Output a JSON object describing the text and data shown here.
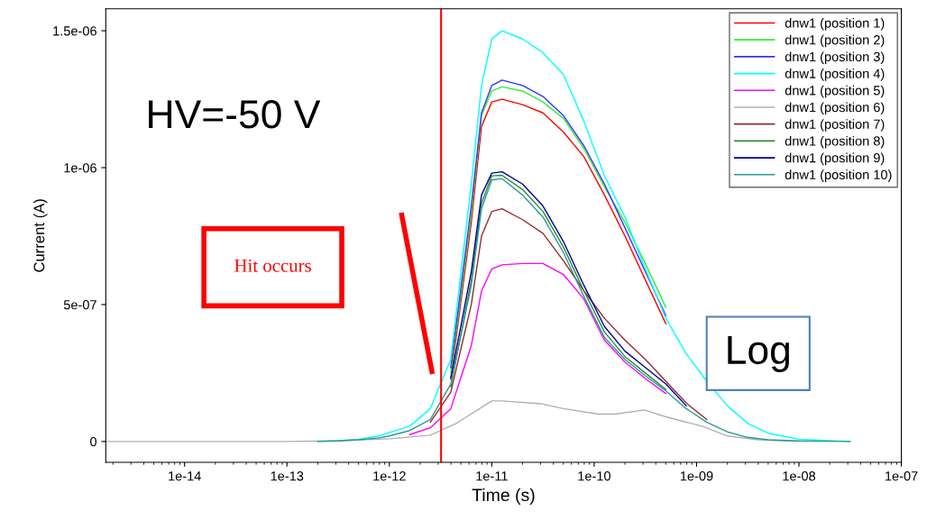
{
  "chart_data": {
    "type": "line",
    "xlabel": "Time (s)",
    "ylabel": "Current (A)",
    "log": "x",
    "xlim": [
      1.7e-15,
      1e-07
    ],
    "xticks": [
      {
        "value": 1e-14,
        "label": "1e-14"
      },
      {
        "value": 1e-13,
        "label": "1e-13"
      },
      {
        "value": 1e-12,
        "label": "1e-12"
      },
      {
        "value": 1e-11,
        "label": "1e-11"
      },
      {
        "value": 1e-10,
        "label": "1e-10"
      },
      {
        "value": 1e-09,
        "label": "1e-09"
      },
      {
        "value": 1e-08,
        "label": "1e-08"
      },
      {
        "value": 1e-07,
        "label": "1e-07"
      }
    ],
    "ylim": [
      -7.6e-08,
      1.58e-06
    ],
    "yticks": [
      0,
      {
        "value": 5e-07,
        "label": "5e-07"
      },
      {
        "value": 1e-06,
        "label": "1e-06"
      },
      {
        "value": 1.5e-06,
        "label": "1.5e-06"
      }
    ],
    "x": [
      2e-13,
      3.16e-13,
      5.01e-13,
      7.94e-13,
      1e-12,
      1.58e-12,
      2.51e-12,
      3.98e-12,
      6.31e-12,
      7.94e-12,
      1e-11,
      1.26e-11,
      2e-11,
      3.16e-11,
      5.01e-11,
      7.94e-11,
      1.26e-10,
      2e-10,
      3.16e-10,
      5.01e-10,
      7.94e-10,
      1.26e-09,
      2e-09,
      3.16e-09,
      5.01e-09,
      1e-08,
      3.16e-08
    ],
    "series": [
      {
        "name": "dnw1 (position 1)",
        "color": "#ff0000",
        "values": [
          null,
          null,
          null,
          null,
          null,
          null,
          null,
          2.3e-07,
          8e-07,
          1.15e-06,
          1.24e-06,
          1.25e-06,
          1.23e-06,
          1.2e-06,
          1.13e-06,
          1.04e-06,
          9e-07,
          7.5e-07,
          5.9e-07,
          4.3e-07,
          null,
          null,
          null,
          null,
          null,
          null,
          null
        ]
      },
      {
        "name": "dnw1 (position 2)",
        "color": "#33ee33",
        "values": [
          null,
          null,
          null,
          null,
          null,
          null,
          null,
          2.5e-07,
          8.3e-07,
          1.19e-06,
          1.28e-06,
          1.295e-06,
          1.28e-06,
          1.24e-06,
          1.18e-06,
          1.07e-06,
          9.3e-07,
          8e-07,
          6.5e-07,
          4.9e-07,
          null,
          null,
          null,
          null,
          null,
          null,
          null
        ]
      },
      {
        "name": "dnw1 (position 3)",
        "color": "#3333ff",
        "values": [
          null,
          null,
          null,
          null,
          null,
          null,
          null,
          2.7e-07,
          8.6e-07,
          1.2e-06,
          1.3e-06,
          1.32e-06,
          1.3e-06,
          1.26e-06,
          1.19e-06,
          1.08e-06,
          9.4e-07,
          7.8e-07,
          6.2e-07,
          4.6e-07,
          null,
          null,
          null,
          null,
          null,
          null,
          null
        ]
      },
      {
        "name": "dnw1 (position 4)",
        "color": "#00ffff",
        "values": [
          0,
          3e-09,
          8e-09,
          2e-08,
          3.3e-08,
          5.6e-08,
          1.2e-07,
          3e-07,
          9.4e-07,
          1.3e-06,
          1.47e-06,
          1.5e-06,
          1.47e-06,
          1.42e-06,
          1.34e-06,
          1.17e-06,
          9.7e-07,
          8.2e-07,
          6.3e-07,
          4.5e-07,
          3.2e-07,
          2.2e-07,
          1.3e-07,
          6.6e-08,
          3e-08,
          8e-09,
          0
        ]
      },
      {
        "name": "dnw1 (position 5)",
        "color": "#ff00ff",
        "values": [
          null,
          null,
          null,
          null,
          null,
          2.5e-08,
          5e-08,
          1.2e-07,
          3.5e-07,
          5.5e-07,
          6.3e-07,
          6.45e-07,
          6.5e-07,
          6.5e-07,
          6.1e-07,
          5.2e-07,
          3.7e-07,
          2.9e-07,
          2.3e-07,
          1.75e-07,
          null,
          null,
          null,
          null,
          null,
          null,
          null
        ]
      },
      {
        "name": "dnw1 (position 6)",
        "color": "#b0b0b0",
        "x": [
          1.7e-15,
          1e-13,
          3.16e-13,
          1e-12,
          2.51e-12,
          4.5e-12,
          1e-11,
          1.26e-11,
          3e-11,
          5e-11,
          1.1e-10,
          1.6e-10,
          3.1e-10,
          5e-10,
          1.15e-09,
          2e-09,
          4e-09,
          1e-08
        ],
        "values": [
          0,
          0,
          3e-09,
          1e-08,
          2.3e-08,
          6.6e-08,
          1.48e-07,
          1.48e-07,
          1.38e-07,
          1.2e-07,
          1e-07,
          1e-07,
          1.15e-07,
          9e-08,
          5.5e-08,
          2e-08,
          6e-09,
          0
        ]
      },
      {
        "name": "dnw1 (position 7)",
        "color": "#992a2a",
        "values": [
          null,
          null,
          null,
          null,
          null,
          null,
          7e-08,
          1.8e-07,
          5e-07,
          7.5e-07,
          8.4e-07,
          8.5e-07,
          8.1e-07,
          7.6e-07,
          6.6e-07,
          5.5e-07,
          4.5e-07,
          3.7e-07,
          3e-07,
          2.2e-07,
          1.4e-07,
          8e-08,
          null,
          null,
          null,
          null,
          null
        ]
      },
      {
        "name": "dnw1 (position 8)",
        "color": "#2e8b2e",
        "values": [
          null,
          null,
          null,
          null,
          null,
          null,
          null,
          2e-07,
          5.9e-07,
          8.7e-07,
          9.7e-07,
          9.72e-07,
          9.2e-07,
          8.4e-07,
          7.1e-07,
          5.5e-07,
          4e-07,
          3.1e-07,
          2.5e-07,
          1.9e-07,
          null,
          null,
          null,
          null,
          null,
          null,
          null
        ]
      },
      {
        "name": "dnw1 (position 9)",
        "color": "#000099",
        "values": [
          null,
          null,
          null,
          null,
          null,
          null,
          null,
          2.3e-07,
          6.2e-07,
          9e-07,
          9.8e-07,
          9.85e-07,
          9.4e-07,
          8.6e-07,
          7.3e-07,
          5.7e-07,
          4.2e-07,
          3.3e-07,
          2.7e-07,
          2.1e-07,
          1.3e-07,
          null,
          null,
          null,
          null,
          null,
          null
        ]
      },
      {
        "name": "dnw1 (position 10)",
        "color": "#2a9a9a",
        "values": [
          0,
          2e-09,
          6e-09,
          1.3e-08,
          2e-08,
          4e-08,
          8e-08,
          2.1e-07,
          5.7e-07,
          8.5e-07,
          9.55e-07,
          9.6e-07,
          9e-07,
          8.2e-07,
          6.9e-07,
          5.3e-07,
          3.8e-07,
          3e-07,
          2.4e-07,
          1.85e-07,
          1.2e-07,
          7e-08,
          3.5e-08,
          1.5e-08,
          6e-09,
          2e-09,
          0
        ]
      }
    ],
    "ref_lines": [
      {
        "axis": "x",
        "value": 3.2e-12,
        "color": "#ff0000",
        "line_style": "solid"
      }
    ],
    "annotations": [
      "HV=-50 V",
      "Hit occurs",
      "Log"
    ],
    "legend": "top right",
    "grid": false,
    "marker": "none",
    "line_style": "solid"
  }
}
